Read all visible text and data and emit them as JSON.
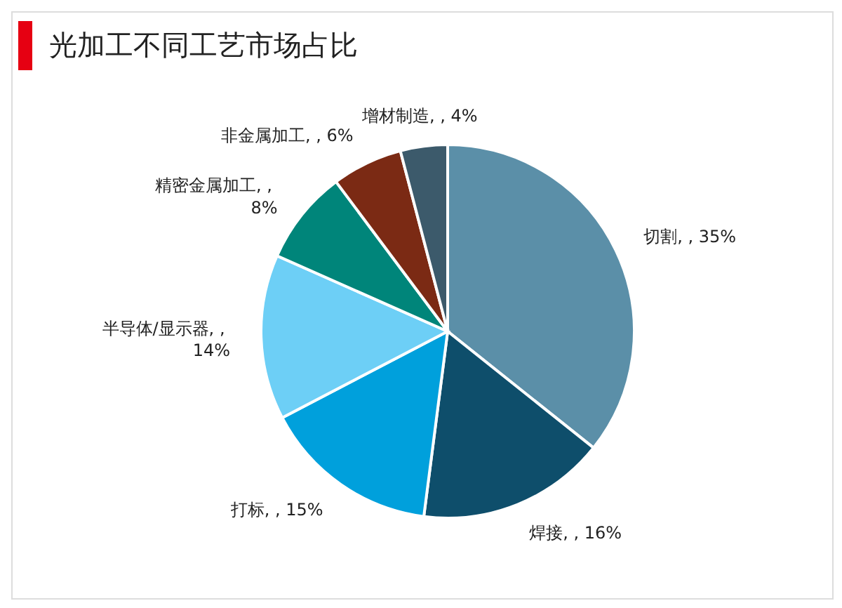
{
  "chart_data": {
    "type": "pie",
    "title": "光加工不同工艺市场占比",
    "categories": [
      "切割",
      "焊接",
      "打标",
      "半导体/显示器",
      "精密金属加工",
      "非金属加工",
      "增材制造"
    ],
    "values": [
      35,
      16,
      15,
      14,
      8,
      6,
      4
    ],
    "value_labels": [
      ", , 35%",
      ", , 16%",
      ", , 15%",
      ", , 14%",
      ", , 8%",
      ", , 6%",
      ", , 4%"
    ],
    "colors": [
      "#5b8fa8",
      "#0e4e6b",
      "#00a0dc",
      "#6dcff6",
      "#00857a",
      "#7b2a14",
      "#3c5a6b"
    ],
    "legend": false
  }
}
